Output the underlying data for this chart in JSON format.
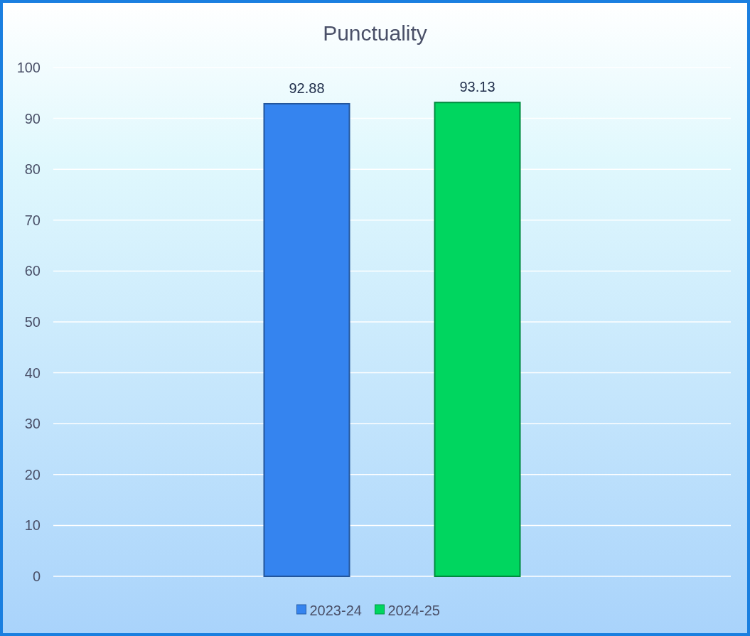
{
  "chart_data": {
    "type": "bar",
    "title": "Punctuality",
    "categories": [
      null
    ],
    "series": [
      {
        "name": "2023-24",
        "color": "#3584ef",
        "values": [
          92.88
        ]
      },
      {
        "name": "2024-25",
        "color": "#00d65f",
        "values": [
          93.13
        ]
      }
    ],
    "ylim": [
      0,
      100
    ],
    "yticks": [
      0,
      10,
      20,
      30,
      40,
      50,
      60,
      70,
      80,
      90,
      100
    ],
    "grid": "y",
    "legend": "bottom",
    "data_labels": true
  }
}
